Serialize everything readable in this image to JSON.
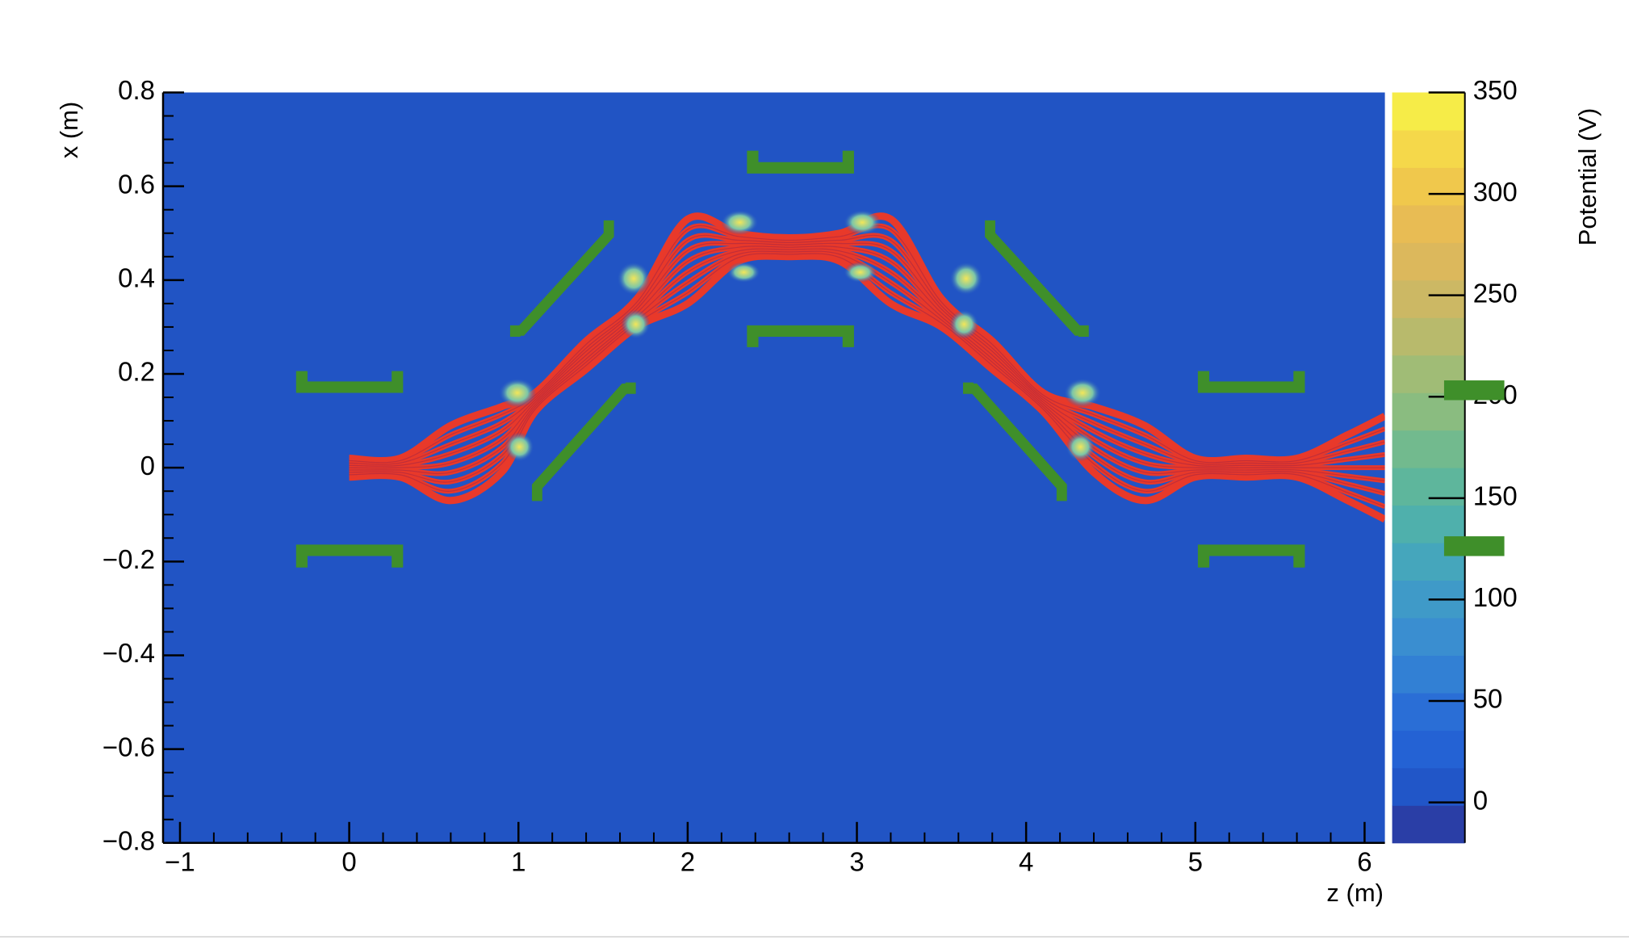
{
  "chart_data": {
    "type": "contour",
    "xlabel": "z (m)",
    "ylabel": "x (m)",
    "xlim": [
      -1.1,
      6.12
    ],
    "ylim": [
      -0.8,
      0.8
    ],
    "xticks": [
      {
        "value": -1,
        "label": "−1"
      },
      0,
      1,
      2,
      3,
      4,
      5,
      6
    ],
    "yticks": [
      {
        "value": -0.8,
        "label": "−0.8"
      },
      {
        "value": -0.6,
        "label": "−0.6"
      },
      {
        "value": -0.4,
        "label": "−0.4"
      },
      {
        "value": -0.2,
        "label": "−0.2"
      },
      0,
      0.2,
      0.4,
      0.6,
      0.8
    ],
    "plot_color": "#2154c4",
    "colorbar": {
      "label": "Potential (V)",
      "zlim": [
        -20,
        350
      ],
      "zticks": [
        0,
        50,
        100,
        150,
        200,
        250,
        300,
        350
      ],
      "colors": [
        "#2a3ea6",
        "#2156c8",
        "#2462d4",
        "#2a6ed6",
        "#3280d4",
        "#3a8ed0",
        "#3f9ac8",
        "#45a6bc",
        "#4fb0ac",
        "#5eb69c",
        "#72ba8e",
        "#8abc80",
        "#a0bc76",
        "#b8ba6c",
        "#ccb864",
        "#dcb85c",
        "#e8bc54",
        "#f0c84c",
        "#f5d84a",
        "#f6ec48"
      ]
    },
    "x": [
      0,
      0.3,
      0.6,
      0.9,
      1.1,
      1.4,
      1.7,
      2.0,
      2.3,
      2.6,
      2.9,
      3.2,
      3.5,
      3.8,
      4.1,
      4.4,
      4.7,
      5.0,
      5.3,
      5.6,
      5.9,
      6.12
    ],
    "series": [
      {
        "color": "#e8392a",
        "values": [
          0.02,
          0.02,
          0.09,
          0.13,
          0.16,
          0.27,
          0.36,
          0.53,
          0.5,
          0.49,
          0.5,
          0.53,
          0.36,
          0.27,
          0.16,
          0.13,
          0.09,
          0.02,
          0.02,
          0.02,
          0.07,
          0.11
        ]
      },
      {
        "color": "#e8392a",
        "values": [
          0.015,
          0.015,
          0.07,
          0.113,
          0.155,
          0.263,
          0.353,
          0.508,
          0.493,
          0.485,
          0.493,
          0.508,
          0.353,
          0.263,
          0.155,
          0.113,
          0.07,
          0.015,
          0.015,
          0.015,
          0.053,
          0.083
        ]
      },
      {
        "color": "#e8392a",
        "values": [
          0.01,
          0.01,
          0.05,
          0.095,
          0.15,
          0.255,
          0.345,
          0.485,
          0.485,
          0.48,
          0.485,
          0.485,
          0.345,
          0.255,
          0.15,
          0.095,
          0.05,
          0.01,
          0.01,
          0.01,
          0.035,
          0.055
        ]
      },
      {
        "color": "#e8392a",
        "values": [
          0.005,
          0.005,
          0.03,
          0.078,
          0.145,
          0.248,
          0.338,
          0.463,
          0.478,
          0.475,
          0.478,
          0.463,
          0.338,
          0.248,
          0.145,
          0.078,
          0.03,
          0.005,
          0.005,
          0.005,
          0.018,
          0.028
        ]
      },
      {
        "color": "#e8392a",
        "values": [
          0,
          0,
          0.01,
          0.06,
          0.14,
          0.24,
          0.33,
          0.44,
          0.47,
          0.47,
          0.47,
          0.44,
          0.33,
          0.24,
          0.14,
          0.06,
          0.01,
          0,
          0,
          0,
          0,
          0
        ]
      },
      {
        "color": "#e8392a",
        "values": [
          -0.005,
          -0.005,
          -0.01,
          0.042,
          0.135,
          0.232,
          0.322,
          0.417,
          0.462,
          0.465,
          0.462,
          0.417,
          0.322,
          0.232,
          0.135,
          0.042,
          -0.01,
          -0.005,
          -0.005,
          -0.005,
          -0.018,
          -0.028
        ]
      },
      {
        "color": "#e8392a",
        "values": [
          -0.01,
          -0.01,
          -0.03,
          0.025,
          0.13,
          0.225,
          0.315,
          0.395,
          0.455,
          0.46,
          0.455,
          0.395,
          0.315,
          0.225,
          0.13,
          0.025,
          -0.03,
          -0.01,
          -0.01,
          -0.01,
          -0.035,
          -0.055
        ]
      },
      {
        "color": "#e8392a",
        "values": [
          -0.015,
          -0.015,
          -0.05,
          0.008,
          0.125,
          0.218,
          0.308,
          0.373,
          0.448,
          0.455,
          0.448,
          0.373,
          0.308,
          0.218,
          0.125,
          0.008,
          -0.05,
          -0.015,
          -0.015,
          -0.015,
          -0.053,
          -0.083
        ]
      },
      {
        "color": "#e8392a",
        "values": [
          -0.02,
          -0.02,
          -0.07,
          -0.01,
          0.12,
          0.21,
          0.3,
          0.35,
          0.44,
          0.45,
          0.44,
          0.35,
          0.3,
          0.21,
          0.12,
          -0.01,
          -0.07,
          -0.02,
          -0.02,
          -0.02,
          -0.07,
          -0.11
        ]
      }
    ]
  }
}
